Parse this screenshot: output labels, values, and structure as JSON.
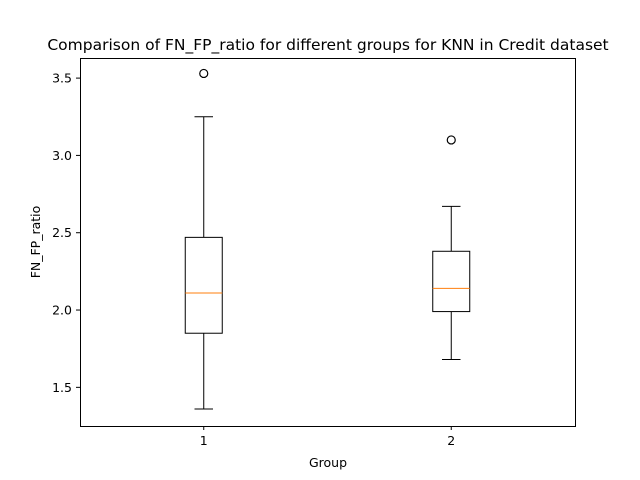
{
  "chart_data": {
    "type": "box",
    "title": "Comparison of FN_FP_ratio for different groups for KNN in Credit dataset",
    "xlabel": "Group",
    "ylabel": "FN_FP_ratio",
    "categories": [
      "1",
      "2"
    ],
    "ylim": [
      1.25,
      3.63
    ],
    "yticks": [
      1.5,
      2.0,
      2.5,
      3.0,
      3.5
    ],
    "ytick_labels": [
      "1.5",
      "2.0",
      "2.5",
      "3.0",
      "3.5"
    ],
    "grid": false,
    "colors": {
      "box": "#000000",
      "median": "#ff7f0e",
      "flier": "#000000"
    },
    "boxes": [
      {
        "name": "1",
        "whisker_low": 1.36,
        "q1": 1.85,
        "median": 2.11,
        "q3": 2.47,
        "whisker_high": 3.25,
        "fliers": [
          3.53
        ]
      },
      {
        "name": "2",
        "whisker_low": 1.68,
        "q1": 1.99,
        "median": 2.14,
        "q3": 2.38,
        "whisker_high": 2.67,
        "fliers": [
          3.1
        ]
      }
    ]
  }
}
